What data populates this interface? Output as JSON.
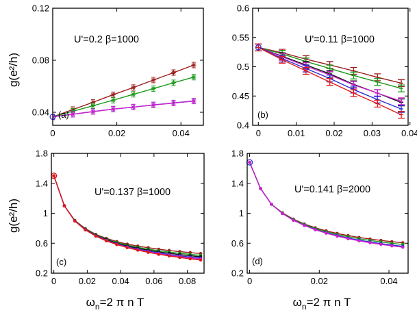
{
  "figure": {
    "ylabel": "g(e²/h)",
    "xlabel": "ωn=2 π n T",
    "xlabel_main": "ω",
    "xlabel_sub": "n",
    "xlabel_rest": "=2 π n T"
  },
  "chart_data": [
    {
      "type": "line",
      "panel": "(a)",
      "annotation": "U'=0.2   β=1000",
      "xlim": [
        0,
        0.047
      ],
      "ylim": [
        0.03,
        0.12
      ],
      "xticks": [
        0,
        0.02,
        0.04
      ],
      "xticklabels": [
        "0",
        "0.02",
        "0.04"
      ],
      "yticks": [
        0.04,
        0.08,
        0.12
      ],
      "yticklabels": [
        "0.04",
        "0.08",
        "0.12"
      ],
      "ylabel": "g(e²/h)",
      "xlabel": "",
      "series": [
        {
          "name": "brown",
          "color": "#9b1b1b",
          "x": [
            0,
            0.00628,
            0.01257,
            0.01885,
            0.02513,
            0.03142,
            0.0377,
            0.04398
          ],
          "y": [
            0.0365,
            0.0421,
            0.0477,
            0.0535,
            0.059,
            0.0648,
            0.0705,
            0.0763
          ]
        },
        {
          "name": "green",
          "color": "#1a9a1a",
          "x": [
            0,
            0.00628,
            0.01257,
            0.01885,
            0.02513,
            0.03142,
            0.0377,
            0.04398
          ],
          "y": [
            0.0365,
            0.0408,
            0.045,
            0.0493,
            0.0538,
            0.0582,
            0.0627,
            0.067
          ]
        },
        {
          "name": "blue",
          "color": "#2a2ad8",
          "x": [
            0,
            0.00628,
            0.01257,
            0.01885,
            0.02513,
            0.03142,
            0.0377,
            0.04398
          ],
          "y": [
            0.0365,
            0.0385,
            0.0405,
            0.0425,
            0.044,
            0.0457,
            0.0472,
            0.0487
          ]
        },
        {
          "name": "magenta",
          "color": "#cc22cc",
          "x": [
            0,
            0.00628,
            0.01257,
            0.01885,
            0.02513,
            0.03142,
            0.0377,
            0.04398
          ],
          "y": [
            0.0365,
            0.0385,
            0.0405,
            0.0424,
            0.044,
            0.0456,
            0.0471,
            0.0486
          ]
        }
      ]
    },
    {
      "type": "line",
      "panel": "(b)",
      "annotation": "U'=0.11  β=1000",
      "xlim": [
        -0.0015,
        0.0395
      ],
      "ylim": [
        0.4,
        0.6
      ],
      "xticks": [
        0,
        0.01,
        0.02,
        0.03,
        0.04
      ],
      "xticklabels": [
        "0",
        "0.01",
        "0.02",
        "0.03",
        "0.04"
      ],
      "yticks": [
        0.4,
        0.45,
        0.5,
        0.55,
        0.6
      ],
      "yticklabels": [
        "0.4",
        "0.45",
        "0.5",
        "0.55",
        "0.6"
      ],
      "ylabel": "",
      "xlabel": "",
      "series": [
        {
          "name": "brown",
          "color": "#9b1b1b",
          "x": [
            0,
            0.00628,
            0.01257,
            0.01885,
            0.02513,
            0.03142,
            0.0377
          ],
          "y": [
            0.533,
            0.524,
            0.513,
            0.503,
            0.493,
            0.482,
            0.472
          ]
        },
        {
          "name": "green",
          "color": "#1a9a1a",
          "x": [
            0,
            0.00628,
            0.01257,
            0.01885,
            0.02513,
            0.03142,
            0.0377
          ],
          "y": [
            0.533,
            0.522,
            0.509,
            0.497,
            0.485,
            0.474,
            0.463
          ]
        },
        {
          "name": "black",
          "color": "#111111",
          "x": [
            0,
            0.00628,
            0.01257,
            0.01885,
            0.02513,
            0.03142,
            0.0377
          ],
          "y": [
            0.533,
            0.518,
            0.503,
            0.488,
            0.47,
            0.455,
            0.439
          ]
        },
        {
          "name": "magenta",
          "color": "#cc22cc",
          "x": [
            0,
            0.00628,
            0.01257,
            0.01885,
            0.02513,
            0.03142,
            0.0377
          ],
          "y": [
            0.533,
            0.517,
            0.501,
            0.486,
            0.469,
            0.455,
            0.441
          ]
        },
        {
          "name": "blue",
          "color": "#2a2ad8",
          "x": [
            0,
            0.00628,
            0.01257,
            0.01885,
            0.02513,
            0.03142,
            0.0377
          ],
          "y": [
            0.533,
            0.514,
            0.497,
            0.48,
            0.461,
            0.444,
            0.428
          ]
        },
        {
          "name": "red",
          "color": "#e01818",
          "x": [
            0,
            0.00628,
            0.01257,
            0.01885,
            0.02513,
            0.03142,
            0.0377
          ],
          "y": [
            0.533,
            0.512,
            0.493,
            0.474,
            0.455,
            0.437,
            0.418
          ]
        }
      ]
    },
    {
      "type": "line",
      "panel": "(c)",
      "annotation": "U'=0.137   β=1000",
      "xlim": [
        -0.0015,
        0.09
      ],
      "ylim": [
        0.2,
        1.8
      ],
      "xticks": [
        0,
        0.02,
        0.04,
        0.06,
        0.08
      ],
      "xticklabels": [
        "0",
        "0.02",
        "0.04",
        "0.06",
        "0.08"
      ],
      "yticks": [
        0.2,
        0.6,
        1.0,
        1.4,
        1.8
      ],
      "yticklabels": [
        "0.2",
        "0.6",
        "1",
        "1.4",
        "1.8"
      ],
      "ylabel": "g(e²/h)",
      "xlabel": "ωn=2 π n T",
      "series": [
        {
          "name": "brown",
          "color": "#9b1b1b",
          "x": [
            0,
            0.00628,
            0.01257,
            0.01885,
            0.02513,
            0.03142,
            0.0377,
            0.04398,
            0.05027,
            0.05655,
            0.06283,
            0.06912,
            0.0754,
            0.08168,
            0.08796
          ],
          "y": [
            1.5,
            1.1,
            0.905,
            0.795,
            0.718,
            0.665,
            0.622,
            0.588,
            0.562,
            0.54,
            0.52,
            0.503,
            0.488,
            0.475,
            0.462
          ]
        },
        {
          "name": "green",
          "color": "#1a9a1a",
          "x": [
            0,
            0.00628,
            0.01257,
            0.01885,
            0.02513,
            0.03142,
            0.0377,
            0.04398,
            0.05027,
            0.05655,
            0.06283,
            0.06912,
            0.0754,
            0.08168,
            0.08796
          ],
          "y": [
            1.5,
            1.1,
            0.902,
            0.79,
            0.711,
            0.655,
            0.61,
            0.574,
            0.546,
            0.521,
            0.5,
            0.482,
            0.466,
            0.451,
            0.438
          ]
        },
        {
          "name": "black",
          "color": "#111111",
          "x": [
            0,
            0.00628,
            0.01257,
            0.01885,
            0.02513,
            0.03142,
            0.0377,
            0.04398,
            0.05027,
            0.05655,
            0.06283,
            0.06912,
            0.0754,
            0.08168,
            0.08796
          ],
          "y": [
            1.5,
            1.1,
            0.9,
            0.786,
            0.705,
            0.647,
            0.6,
            0.563,
            0.533,
            0.507,
            0.485,
            0.466,
            0.449,
            0.433,
            0.419
          ]
        },
        {
          "name": "blue",
          "color": "#2a2ad8",
          "x": [
            0,
            0.00628,
            0.01257,
            0.01885,
            0.02513,
            0.03142,
            0.0377,
            0.04398,
            0.05027,
            0.05655,
            0.06283,
            0.06912,
            0.0754,
            0.08168,
            0.08796
          ],
          "y": [
            1.5,
            1.1,
            0.898,
            0.782,
            0.7,
            0.64,
            0.592,
            0.553,
            0.521,
            0.494,
            0.47,
            0.45,
            0.432,
            0.416,
            0.401
          ]
        },
        {
          "name": "magenta",
          "color": "#cc22cc",
          "x": [
            0,
            0.00628,
            0.01257,
            0.01885,
            0.02513,
            0.03142,
            0.0377,
            0.04398,
            0.05027,
            0.05655,
            0.06283,
            0.06912,
            0.0754,
            0.08168,
            0.08796
          ],
          "y": [
            1.5,
            1.1,
            0.897,
            0.78,
            0.697,
            0.636,
            0.587,
            0.547,
            0.514,
            0.486,
            0.461,
            0.44,
            0.421,
            0.404,
            0.389
          ]
        },
        {
          "name": "red",
          "color": "#e01818",
          "x": [
            0,
            0.00628,
            0.01257,
            0.01885,
            0.02513,
            0.03142,
            0.0377,
            0.04398,
            0.05027,
            0.05655,
            0.06283,
            0.06912,
            0.0754,
            0.08168,
            0.08796
          ],
          "y": [
            1.5,
            1.1,
            0.896,
            0.778,
            0.694,
            0.632,
            0.582,
            0.541,
            0.507,
            0.478,
            0.452,
            0.43,
            0.41,
            0.392,
            0.376
          ]
        }
      ]
    },
    {
      "type": "line",
      "panel": "(d)",
      "annotation": "U'=0.141    β=2000",
      "xlim": [
        -0.0007,
        0.0455
      ],
      "ylim": [
        0.2,
        1.8
      ],
      "xticks": [
        0,
        0.02,
        0.04
      ],
      "xticklabels": [
        "0",
        "0.02",
        "0.04"
      ],
      "yticks": [
        0.2,
        0.6,
        1.0,
        1.4,
        1.8
      ],
      "yticklabels": [
        "0.2",
        "0.6",
        "1",
        "1.4",
        "1.8"
      ],
      "ylabel": "",
      "xlabel": "ωn=2 π n T",
      "series": [
        {
          "name": "brown",
          "color": "#9b1b1b",
          "x": [
            0,
            0.00314,
            0.00628,
            0.00942,
            0.01257,
            0.01571,
            0.01885,
            0.02199,
            0.02513,
            0.02827,
            0.03142,
            0.03456,
            0.0377,
            0.04084,
            0.04398
          ],
          "y": [
            1.68,
            1.33,
            1.12,
            1.006,
            0.922,
            0.857,
            0.806,
            0.765,
            0.731,
            0.702,
            0.677,
            0.656,
            0.637,
            0.621,
            0.606
          ]
        },
        {
          "name": "green",
          "color": "#1a9a1a",
          "x": [
            0,
            0.00314,
            0.00628,
            0.00942,
            0.01257,
            0.01571,
            0.01885,
            0.02199,
            0.02513,
            0.02827,
            0.03142,
            0.03456,
            0.0377,
            0.04084,
            0.04398
          ],
          "y": [
            1.68,
            1.33,
            1.12,
            1.002,
            0.916,
            0.849,
            0.796,
            0.753,
            0.717,
            0.686,
            0.66,
            0.637,
            0.617,
            0.599,
            0.583
          ]
        },
        {
          "name": "blue",
          "color": "#2a2ad8",
          "x": [
            0,
            0.00314,
            0.00628,
            0.00942,
            0.01257,
            0.01571,
            0.01885,
            0.02199,
            0.02513,
            0.02827,
            0.03142,
            0.03456,
            0.0377,
            0.04084,
            0.04398
          ],
          "y": [
            1.68,
            1.33,
            1.12,
            0.998,
            0.909,
            0.84,
            0.785,
            0.74,
            0.702,
            0.669,
            0.641,
            0.617,
            0.595,
            0.576,
            0.558
          ]
        },
        {
          "name": "magenta",
          "color": "#cc22cc",
          "x": [
            0,
            0.00314,
            0.00628,
            0.00942,
            0.01257,
            0.01571,
            0.01885,
            0.02199,
            0.02513,
            0.02827,
            0.03142,
            0.03456,
            0.0377,
            0.04084,
            0.04398
          ],
          "y": [
            1.68,
            1.33,
            1.12,
            0.996,
            0.906,
            0.836,
            0.78,
            0.734,
            0.695,
            0.661,
            0.632,
            0.607,
            0.585,
            0.565,
            0.547
          ]
        }
      ]
    }
  ]
}
